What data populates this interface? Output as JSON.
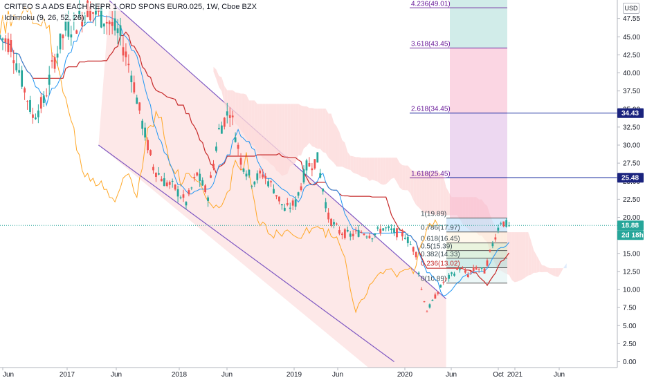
{
  "header": {
    "title": "CRITEO S.A ADS EACH REPR 1 ORD SPONS EUR0.025, 1W, Cboe BZX",
    "indicator": "Ichimoku (9, 26, 52, 26)",
    "currency": "USD"
  },
  "colors": {
    "up": "#26a69a",
    "down": "#ef5350",
    "tenkan": "#2196f3",
    "kijun": "#c62828",
    "lagging": "#ffa726",
    "channel": "#7e57c2",
    "channel_fill": "#fde2e2",
    "cloud_red": "#fcdada",
    "cloud_blue": "#d6e6fb",
    "fib_line": "#3949ab"
  },
  "chart_data": {
    "type": "candlestick",
    "interval": "1W",
    "x_ticks": [
      "Jun",
      "2017",
      "Jun",
      "2018",
      "Jun",
      "2019",
      "Jun",
      "2020",
      "Jun",
      "Oct",
      "2021",
      "Jun"
    ],
    "y_ticks": [
      "47.55",
      "45.00",
      "42.50",
      "40.00",
      "37.50",
      "35.00",
      "32.50",
      "30.00",
      "27.50",
      "25.00",
      "22.50",
      "20.00",
      "17.50",
      "15.00",
      "12.50",
      "10.00",
      "7.50",
      "5.00",
      "2.50",
      "0.00"
    ],
    "ylim": [
      0,
      50.5
    ],
    "price_anchors": [
      {
        "t": 0,
        "v": 45
      },
      {
        "t": 4,
        "v": 44
      },
      {
        "t": 8,
        "v": 39
      },
      {
        "t": 12,
        "v": 34
      },
      {
        "t": 16,
        "v": 36
      },
      {
        "t": 20,
        "v": 42
      },
      {
        "t": 24,
        "v": 46
      },
      {
        "t": 28,
        "v": 47
      },
      {
        "t": 32,
        "v": 49
      },
      {
        "t": 36,
        "v": 48
      },
      {
        "t": 40,
        "v": 47
      },
      {
        "t": 44,
        "v": 45
      },
      {
        "t": 48,
        "v": 40
      },
      {
        "t": 52,
        "v": 33
      },
      {
        "t": 56,
        "v": 27
      },
      {
        "t": 60,
        "v": 25
      },
      {
        "t": 64,
        "v": 24
      },
      {
        "t": 68,
        "v": 22
      },
      {
        "t": 72,
        "v": 26
      },
      {
        "t": 76,
        "v": 23
      },
      {
        "t": 80,
        "v": 32
      },
      {
        "t": 84,
        "v": 35
      },
      {
        "t": 88,
        "v": 28
      },
      {
        "t": 92,
        "v": 25
      },
      {
        "t": 96,
        "v": 26
      },
      {
        "t": 100,
        "v": 24
      },
      {
        "t": 104,
        "v": 21
      },
      {
        "t": 108,
        "v": 22
      },
      {
        "t": 112,
        "v": 27
      },
      {
        "t": 116,
        "v": 28
      },
      {
        "t": 120,
        "v": 20
      },
      {
        "t": 124,
        "v": 18
      },
      {
        "t": 128,
        "v": 17.5
      },
      {
        "t": 132,
        "v": 18
      },
      {
        "t": 136,
        "v": 17.5
      },
      {
        "t": 140,
        "v": 18.5
      },
      {
        "t": 144,
        "v": 18
      },
      {
        "t": 148,
        "v": 17.5
      },
      {
        "t": 152,
        "v": 15
      },
      {
        "t": 154,
        "v": 10
      },
      {
        "t": 156,
        "v": 7
      },
      {
        "t": 159,
        "v": 9
      },
      {
        "t": 162,
        "v": 11
      },
      {
        "t": 165,
        "v": 12
      },
      {
        "t": 168,
        "v": 13
      },
      {
        "t": 171,
        "v": 12
      },
      {
        "t": 174,
        "v": 13
      },
      {
        "t": 177,
        "v": 12.5
      },
      {
        "t": 179,
        "v": 15
      },
      {
        "t": 181,
        "v": 17.5
      },
      {
        "t": 183,
        "v": 19.5
      },
      {
        "t": 185,
        "v": 19
      },
      {
        "t": 186,
        "v": 18.9
      }
    ],
    "current_price": 18.88,
    "countdown": "2d 18h",
    "tags": [
      {
        "label": "34.43",
        "price": 34.43
      },
      {
        "label": "25.48",
        "price": 25.48
      }
    ],
    "fib_levels": [
      {
        "label": "4.236(49.01)",
        "price": 49.01
      },
      {
        "label": "3.618(43.45)",
        "price": 43.45
      },
      {
        "label": "2.618(34.45)",
        "price": 34.45
      },
      {
        "label": "1.618(25.45)",
        "price": 25.45
      },
      {
        "label": "1(19.89)",
        "price": 19.89
      },
      {
        "label": "0.786(17.97)",
        "price": 17.97
      },
      {
        "label": "0.618(16.45)",
        "price": 16.45
      },
      {
        "label": "0.5(15.39)",
        "price": 15.39
      },
      {
        "label": "0.382(14.33)",
        "price": 14.33
      },
      {
        "label": "0.236(13.02)",
        "price": 13.02
      },
      {
        "label": "0(10.89)",
        "price": 10.89
      }
    ],
    "channel": {
      "upper": {
        "t0": 40,
        "p0": 50.0,
        "t1": 163,
        "p1": 8.7
      },
      "lower": {
        "t0": 36,
        "p0": 30.0,
        "t1": 144,
        "p1": 0.0
      }
    }
  }
}
